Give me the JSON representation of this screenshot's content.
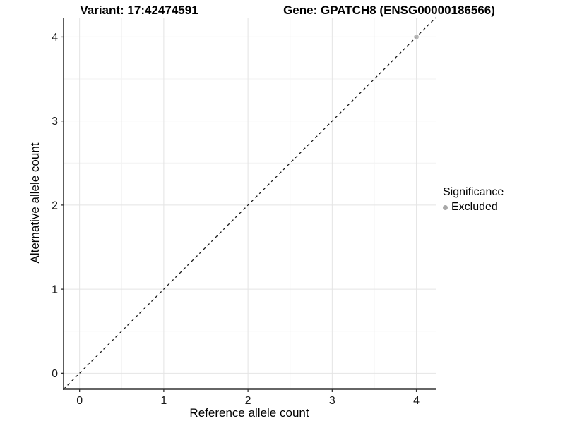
{
  "chart_data": {
    "type": "scatter",
    "titles": {
      "left": "Variant: 17:42474591",
      "right": "Gene: GPATCH8 (ENSG00000186566)"
    },
    "xlabel": "Reference allele count",
    "ylabel": "Alternative allele count",
    "xlim": [
      -0.19,
      4.23
    ],
    "ylim": [
      -0.19,
      4.23
    ],
    "x_ticks": [
      0,
      1,
      2,
      3,
      4
    ],
    "y_ticks": [
      0,
      1,
      2,
      3,
      4
    ],
    "minor_ticks": [
      0.5,
      1.5,
      2.5,
      3.5
    ],
    "grid": {
      "major": true,
      "minor": true,
      "major_color": "#e4e4e4",
      "minor_color": "#f2f2f2"
    },
    "axis_color": "#333333",
    "identity_line": {
      "style": "dashed",
      "slope": 1,
      "intercept": 0,
      "color": "#1a1a1a"
    },
    "points": [
      {
        "x": 4,
        "y": 4,
        "significance": "Excluded"
      }
    ],
    "point_color": "#b1b1b1",
    "legend": {
      "title": "Significance",
      "position": "right",
      "items": [
        {
          "label": "Excluded",
          "color": "#a8a8a8"
        }
      ]
    }
  }
}
